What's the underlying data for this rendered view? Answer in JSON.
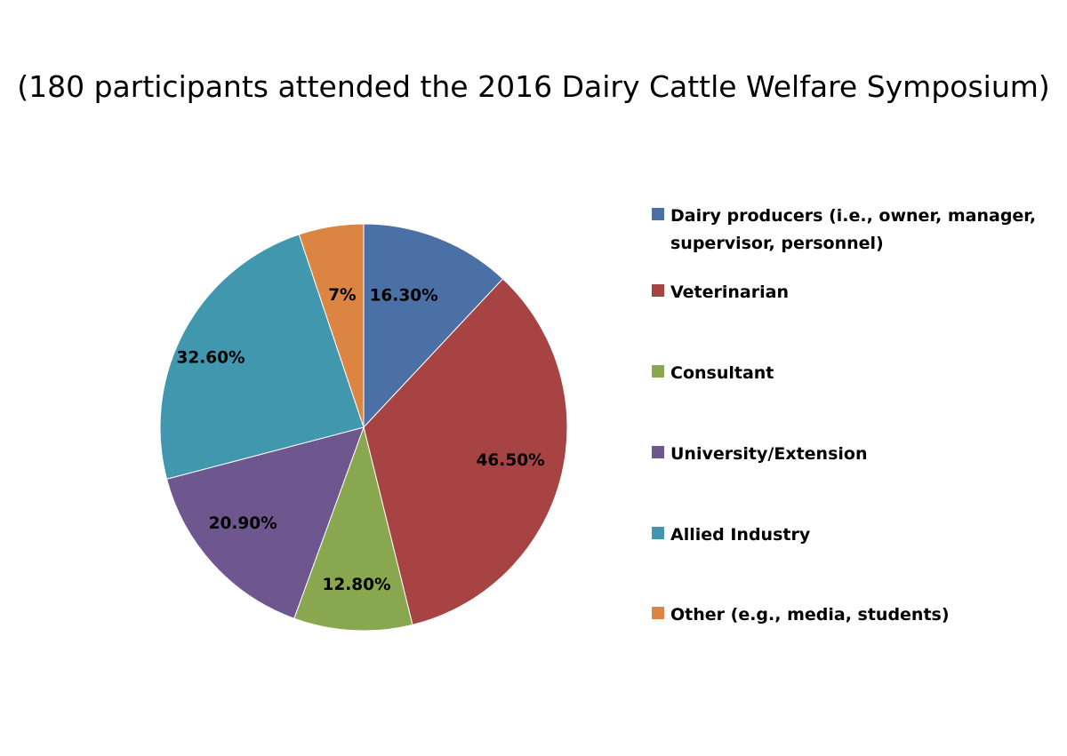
{
  "title": "(180 participants attended the 2016 Dairy Cattle Welfare Symposium)",
  "chart_data": {
    "type": "pie",
    "title": "(180 participants attended the 2016 Dairy Cattle Welfare Symposium)",
    "start_angle_deg": 0,
    "direction": "clockwise",
    "legend_position": "right",
    "slices": [
      {
        "name": "Dairy producers (i.e., owner, manager, supervisor, personnel)",
        "value": 16.3,
        "label": "16.30%",
        "color": "#4A70A6"
      },
      {
        "name": "Veterinarian",
        "value": 46.5,
        "label": "46.50%",
        "color": "#A84344"
      },
      {
        "name": "Consultant",
        "value": 12.8,
        "label": "12.80%",
        "color": "#88A74E"
      },
      {
        "name": "University/Extension",
        "value": 20.9,
        "label": "20.90%",
        "color": "#6E568F"
      },
      {
        "name": "Allied Industry",
        "value": 32.6,
        "label": "32.60%",
        "color": "#4197AE"
      },
      {
        "name": "Other (e.g., media, students)",
        "value": 7,
        "label": "7%",
        "color": "#DC8442"
      }
    ]
  }
}
